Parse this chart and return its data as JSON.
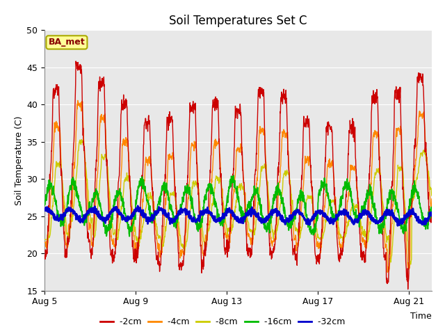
{
  "title": "Soil Temperatures Set C",
  "xlabel": "Time",
  "ylabel": "Soil Temperature (C)",
  "ylim": [
    15,
    50
  ],
  "yticks": [
    15,
    20,
    25,
    30,
    35,
    40,
    45,
    50
  ],
  "n_days": 17,
  "xtick_positions": [
    0,
    4,
    8,
    12,
    16
  ],
  "xtick_labels": [
    "Aug 5",
    "Aug 9",
    "Aug 13",
    "Aug 17",
    "Aug 21"
  ],
  "colors": {
    "-2cm": "#cc0000",
    "-4cm": "#ff8800",
    "-8cm": "#cccc00",
    "-16cm": "#00bb00",
    "-32cm": "#0000cc"
  },
  "annotation_text": "BA_met",
  "plot_bg": "#e8e8e8",
  "grid_color": "#ffffff",
  "legend_entries": [
    "-2cm",
    "-4cm",
    "-8cm",
    "-16cm",
    "-32cm"
  ]
}
